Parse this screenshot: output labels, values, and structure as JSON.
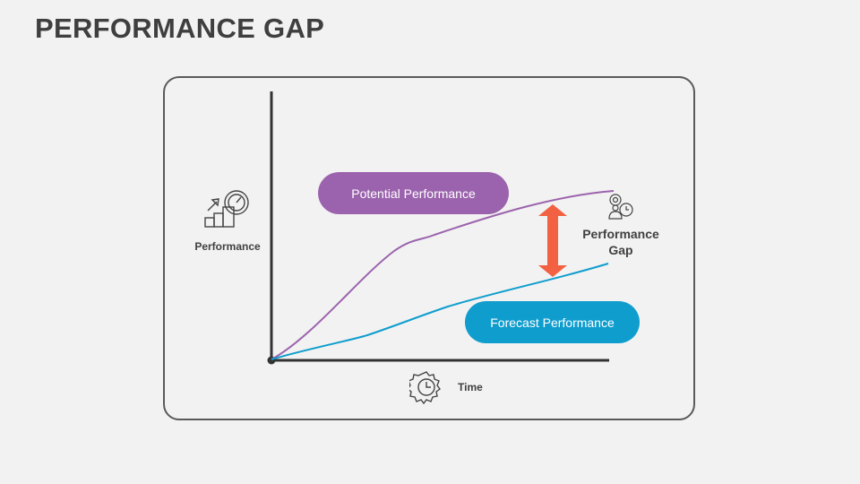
{
  "title": "PERFORMANCE GAP",
  "labels": {
    "potential": "Potential Performance",
    "forecast": "Forecast Performance",
    "y_axis": "Performance",
    "x_axis": "Time",
    "gap": "Performance Gap"
  },
  "colors": {
    "potential": "#9b63ad",
    "forecast": "#0f9dce",
    "gap_arrow": "#f26141",
    "axis": "#333333"
  }
}
